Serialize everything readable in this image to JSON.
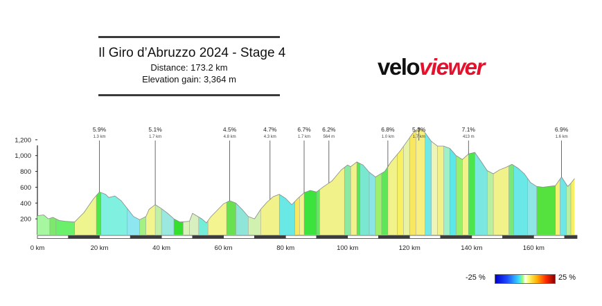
{
  "header": {
    "title": "Il Giro d’Abruzzo 2024 - Stage 4",
    "distance": "Distance: 173.2 km",
    "elevation": "Elevation gain: 3,364 m"
  },
  "logo": {
    "part1": "velo",
    "part2": "viewer"
  },
  "legend": {
    "min_label": "-25 %",
    "max_label": "25 %"
  },
  "chart_data": {
    "type": "area",
    "xlim": [
      0,
      174
    ],
    "ylim": [
      0,
      1400
    ],
    "x_ticks": [
      "0 km",
      "20 km",
      "40 km",
      "60 km",
      "80 km",
      "100 km",
      "120 km",
      "140 km",
      "160 km"
    ],
    "x_tick_values": [
      0,
      20,
      40,
      60,
      80,
      100,
      120,
      140,
      160
    ],
    "y_ticks": [
      "200",
      "400",
      "600",
      "800",
      "1,000",
      "1,200"
    ],
    "y_tick_values": [
      200,
      400,
      600,
      800,
      1000,
      1200
    ],
    "profile": [
      [
        0,
        240
      ],
      [
        2,
        250
      ],
      [
        3.5,
        200
      ],
      [
        5,
        220
      ],
      [
        7,
        180
      ],
      [
        9,
        170
      ],
      [
        12,
        160
      ],
      [
        15,
        280
      ],
      [
        18,
        450
      ],
      [
        20,
        540
      ],
      [
        22,
        510
      ],
      [
        23,
        470
      ],
      [
        25,
        490
      ],
      [
        27,
        430
      ],
      [
        29,
        330
      ],
      [
        31,
        230
      ],
      [
        33,
        190
      ],
      [
        35,
        230
      ],
      [
        36,
        320
      ],
      [
        38,
        380
      ],
      [
        40,
        330
      ],
      [
        42,
        270
      ],
      [
        44,
        200
      ],
      [
        46,
        160
      ],
      [
        49,
        170
      ],
      [
        50,
        270
      ],
      [
        53,
        200
      ],
      [
        54.5,
        150
      ],
      [
        56,
        230
      ],
      [
        58,
        310
      ],
      [
        60,
        390
      ],
      [
        62,
        430
      ],
      [
        64,
        400
      ],
      [
        66,
        320
      ],
      [
        68,
        230
      ],
      [
        70,
        200
      ],
      [
        72,
        320
      ],
      [
        74,
        410
      ],
      [
        76,
        480
      ],
      [
        78,
        510
      ],
      [
        80,
        460
      ],
      [
        82,
        380
      ],
      [
        84,
        460
      ],
      [
        86,
        530
      ],
      [
        88,
        560
      ],
      [
        90,
        540
      ],
      [
        92,
        600
      ],
      [
        95,
        680
      ],
      [
        98,
        820
      ],
      [
        100,
        880
      ],
      [
        101,
        860
      ],
      [
        103,
        920
      ],
      [
        105,
        880
      ],
      [
        107,
        790
      ],
      [
        109,
        730
      ],
      [
        112,
        800
      ],
      [
        114,
        920
      ],
      [
        117,
        1060
      ],
      [
        119,
        1170
      ],
      [
        121,
        1280
      ],
      [
        123,
        1350
      ],
      [
        125,
        1290
      ],
      [
        127,
        1180
      ],
      [
        129,
        1120
      ],
      [
        131,
        1120
      ],
      [
        133,
        1090
      ],
      [
        135,
        1000
      ],
      [
        137,
        950
      ],
      [
        139,
        1020
      ],
      [
        141,
        1040
      ],
      [
        143,
        930
      ],
      [
        145,
        810
      ],
      [
        147,
        770
      ],
      [
        149,
        820
      ],
      [
        151,
        850
      ],
      [
        153,
        890
      ],
      [
        155,
        840
      ],
      [
        157,
        770
      ],
      [
        159,
        660
      ],
      [
        161,
        610
      ],
      [
        163,
        600
      ],
      [
        165,
        610
      ],
      [
        167,
        620
      ],
      [
        169,
        730
      ],
      [
        171,
        610
      ],
      [
        172,
        650
      ],
      [
        173.2,
        710
      ]
    ],
    "gradient_bands": [
      [
        0,
        4,
        "#a6f7a0"
      ],
      [
        4,
        6,
        "#7de86c"
      ],
      [
        6,
        12,
        "#6af06a"
      ],
      [
        12,
        19,
        "#eef58e"
      ],
      [
        19,
        20.5,
        "#4ee64b"
      ],
      [
        20.5,
        29,
        "#80f0e0"
      ],
      [
        29,
        33,
        "#8ee6f0"
      ],
      [
        33,
        35,
        "#a5f082"
      ],
      [
        35,
        38,
        "#f2f48d"
      ],
      [
        38,
        40,
        "#c0f0a6"
      ],
      [
        40,
        44,
        "#9ae8e0"
      ],
      [
        44,
        47,
        "#35e02c"
      ],
      [
        47,
        49,
        "#d9f3b8"
      ],
      [
        49,
        52,
        "#d8f0c0"
      ],
      [
        52,
        55,
        "#74eed8"
      ],
      [
        55,
        61,
        "#f4f590"
      ],
      [
        61,
        64,
        "#68e050"
      ],
      [
        64,
        68,
        "#8fe6d8"
      ],
      [
        68,
        72,
        "#d0f1b0"
      ],
      [
        72,
        78,
        "#f1f28a"
      ],
      [
        78,
        83,
        "#6ae8e6"
      ],
      [
        83,
        84.5,
        "#f8e860"
      ],
      [
        84.5,
        86,
        "#f3f48c"
      ],
      [
        86,
        90,
        "#3ce33c"
      ],
      [
        90,
        91,
        "#64e664"
      ],
      [
        91,
        99,
        "#f1f28a"
      ],
      [
        99,
        101,
        "#8be9a2"
      ],
      [
        101,
        103,
        "#f1f28a"
      ],
      [
        103,
        104,
        "#5de25a"
      ],
      [
        104,
        107,
        "#7ae8d0"
      ],
      [
        107,
        109,
        "#8ae6e6"
      ],
      [
        109,
        111,
        "#9cf06a"
      ],
      [
        111,
        113,
        "#5ee65a"
      ],
      [
        113,
        116,
        "#f1f28a"
      ],
      [
        116,
        118,
        "#f7f060"
      ],
      [
        118,
        120,
        "#e8f2a0"
      ],
      [
        120,
        122,
        "#f8e860"
      ],
      [
        122,
        125,
        "#f7f080"
      ],
      [
        125,
        127,
        "#6fe8e8"
      ],
      [
        127,
        129,
        "#eef3b8"
      ],
      [
        129,
        131,
        "#f1f28a"
      ],
      [
        131,
        133,
        "#9ef0c8"
      ],
      [
        133,
        135,
        "#5ae8e8"
      ],
      [
        135,
        137,
        "#96f06a"
      ],
      [
        137,
        139,
        "#f1f28a"
      ],
      [
        139,
        141,
        "#4ce64c"
      ],
      [
        141,
        145,
        "#7ae8e0"
      ],
      [
        145,
        147,
        "#b8f0a0"
      ],
      [
        147,
        152,
        "#f1f28a"
      ],
      [
        152,
        153.5,
        "#78e878"
      ],
      [
        153.5,
        158,
        "#6ae8e8"
      ],
      [
        158,
        161,
        "#8ee6e6"
      ],
      [
        161,
        167,
        "#56e23e"
      ],
      [
        167,
        168.5,
        "#f4f070"
      ],
      [
        168.5,
        170.5,
        "#6ee6e6"
      ],
      [
        170.5,
        172,
        "#b6f0a0"
      ],
      [
        172,
        173.2,
        "#f7f060"
      ]
    ],
    "climbs": [
      {
        "gradient": "5.9%",
        "length": "1.3 km",
        "km": 20
      },
      {
        "gradient": "5.1%",
        "length": "1.7 km",
        "km": 38
      },
      {
        "gradient": "4.5%",
        "length": "4.8 km",
        "km": 62
      },
      {
        "gradient": "4.7%",
        "length": "4.3 km",
        "km": 75
      },
      {
        "gradient": "6.7%",
        "length": "1.7 km",
        "km": 86
      },
      {
        "gradient": "6.2%",
        "length": "564 m",
        "km": 94
      },
      {
        "gradient": "6.8%",
        "length": "1.0 km",
        "km": 113
      },
      {
        "gradient": "5.3%",
        "length": "1.7 km",
        "km": 123
      },
      {
        "gradient": "7.1%",
        "length": "413 m",
        "km": 139
      },
      {
        "gradient": "6.9%",
        "length": "1.6 km",
        "km": 169
      }
    ]
  }
}
